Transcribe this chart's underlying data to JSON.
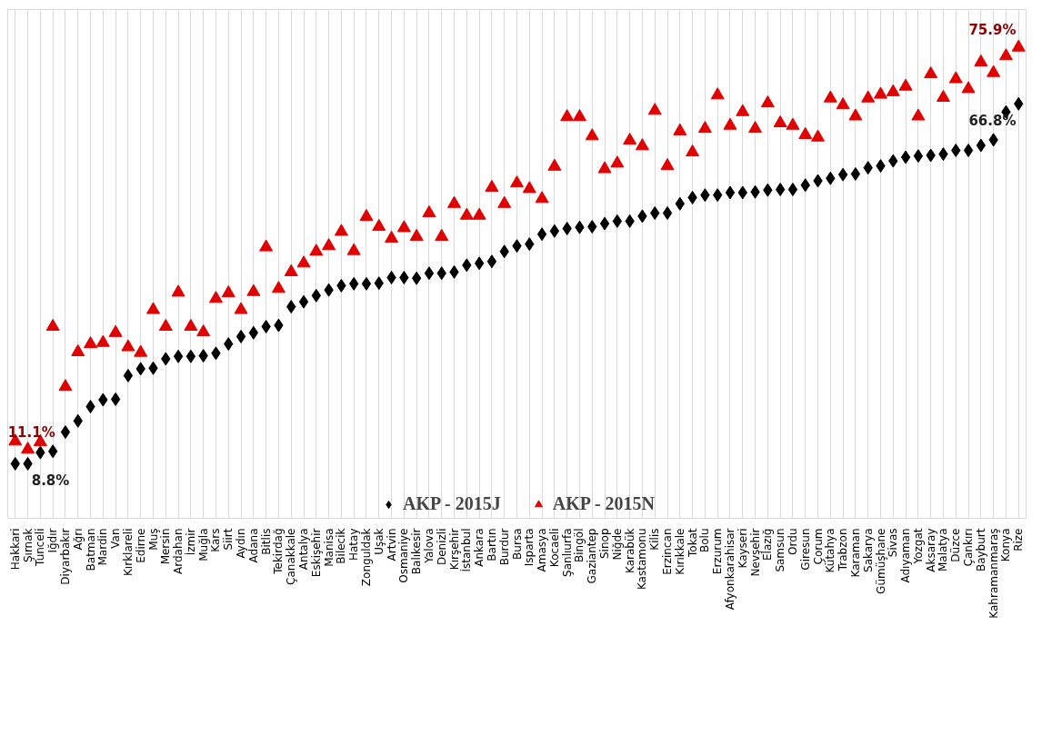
{
  "chart_data": {
    "type": "scatter",
    "categories": [
      "Hakkari",
      "Şırnak",
      "Tunceli",
      "Iğdır",
      "Diyarbakır",
      "Ağrı",
      "Batman",
      "Mardin",
      "Van",
      "Kırklareli",
      "Edirne",
      "Muş",
      "Mersin",
      "Ardahan",
      "İzmir",
      "Muğla",
      "Kars",
      "Siirt",
      "Aydın",
      "Adana",
      "Bitlis",
      "Tekirdağ",
      "Çanakkale",
      "Antalya",
      "Eskişehir",
      "Manisa",
      "Bilecik",
      "Hatay",
      "Zonguldak",
      "Uşak",
      "Artvin",
      "Osmaniye",
      "Balıkesir",
      "Yalova",
      "Denizli",
      "Kırşehir",
      "İstanbul",
      "Ankara",
      "Bartın",
      "Burdur",
      "Bursa",
      "Isparta",
      "Amasya",
      "Kocaeli",
      "Şanlıurfa",
      "Bingöl",
      "Gaziantep",
      "Sinop",
      "Niğde",
      "Karabük",
      "Kastamonu",
      "Kilis",
      "Erzincan",
      "Kırıkkale",
      "Tokat",
      "Bolu",
      "Erzurum",
      "Afyonkarahisar",
      "Kayseri",
      "Nevşehir",
      "Elazığ",
      "Samsun",
      "Ordu",
      "Giresun",
      "Çorum",
      "Kütahya",
      "Trabzon",
      "Karaman",
      "Sakarya",
      "Gümüşhane",
      "Sivas",
      "Adıyaman",
      "Yozgat",
      "Aksaray",
      "Malatya",
      "Düzce",
      "Çankırı",
      "Bayburt",
      "Kahramanmaraş",
      "Konya",
      "Rize"
    ],
    "ylim": [
      0,
      82
    ],
    "grid": "x",
    "legend": "bottom",
    "series": [
      {
        "name": "AKP - 2015J",
        "color": "#000000",
        "marker": "diamond",
        "values": [
          8.8,
          8.8,
          10.6,
          10.8,
          13.9,
          15.7,
          18.0,
          19.1,
          19.2,
          23.0,
          24.1,
          24.2,
          25.7,
          26.1,
          26.1,
          26.2,
          26.6,
          28.1,
          29.3,
          29.9,
          30.9,
          31.1,
          34.1,
          34.9,
          35.9,
          36.8,
          37.5,
          37.8,
          37.8,
          37.9,
          38.8,
          38.8,
          38.7,
          39.5,
          39.5,
          39.7,
          40.8,
          41.1,
          41.4,
          43.0,
          43.9,
          44.2,
          45.8,
          46.3,
          46.7,
          46.9,
          47.0,
          47.5,
          47.9,
          47.9,
          48.7,
          49.2,
          49.2,
          50.7,
          51.7,
          52.1,
          52.1,
          52.5,
          52.5,
          52.6,
          52.9,
          53.0,
          53.0,
          53.7,
          54.4,
          54.8,
          55.4,
          55.5,
          56.5,
          56.8,
          57.6,
          58.2,
          58.4,
          58.5,
          58.7,
          59.3,
          59.3,
          60.1,
          61.0,
          65.5,
          66.8
        ],
        "value_labels": [
          null,
          "8.8%",
          null,
          null,
          null,
          null,
          null,
          null,
          null,
          null,
          null,
          null,
          null,
          null,
          null,
          null,
          null,
          null,
          null,
          null,
          null,
          null,
          null,
          null,
          null,
          null,
          null,
          null,
          null,
          null,
          null,
          null,
          null,
          null,
          null,
          null,
          null,
          null,
          null,
          null,
          null,
          null,
          null,
          null,
          null,
          null,
          null,
          null,
          null,
          null,
          null,
          null,
          null,
          null,
          null,
          null,
          null,
          null,
          null,
          null,
          null,
          null,
          null,
          null,
          null,
          null,
          null,
          null,
          null,
          null,
          null,
          null,
          null,
          null,
          null,
          null,
          null,
          null,
          null,
          null,
          "66.8%"
        ]
      },
      {
        "name": "AKP - 2015N",
        "color": "#e00000",
        "marker": "triangle",
        "values": [
          12.4,
          11.1,
          12.3,
          30.9,
          21.2,
          26.8,
          28.1,
          28.3,
          29.9,
          27.6,
          26.7,
          33.6,
          30.9,
          36.4,
          30.9,
          30.0,
          35.4,
          36.3,
          33.6,
          36.5,
          43.7,
          37.0,
          39.7,
          41.1,
          43.0,
          43.9,
          46.2,
          43.1,
          48.6,
          47.0,
          45.1,
          46.8,
          45.4,
          49.2,
          45.4,
          50.7,
          48.8,
          48.8,
          53.3,
          50.7,
          54.0,
          53.1,
          51.5,
          56.7,
          64.7,
          64.7,
          61.6,
          56.3,
          57.2,
          60.9,
          60.0,
          65.7,
          56.8,
          62.4,
          59.0,
          62.8,
          68.2,
          63.3,
          65.5,
          62.8,
          66.9,
          63.7,
          63.3,
          61.8,
          61.4,
          67.7,
          66.6,
          64.8,
          67.7,
          68.3,
          68.7,
          69.6,
          64.8,
          71.6,
          67.8,
          70.8,
          69.2,
          73.5,
          71.8,
          74.5,
          75.9
        ],
        "value_labels": [
          null,
          "11.1%",
          null,
          null,
          null,
          null,
          null,
          null,
          null,
          null,
          null,
          null,
          null,
          null,
          null,
          null,
          null,
          null,
          null,
          null,
          null,
          null,
          null,
          null,
          null,
          null,
          null,
          null,
          null,
          null,
          null,
          null,
          null,
          null,
          null,
          null,
          null,
          null,
          null,
          null,
          null,
          null,
          null,
          null,
          null,
          null,
          null,
          null,
          null,
          null,
          null,
          null,
          null,
          null,
          null,
          null,
          null,
          null,
          null,
          null,
          null,
          null,
          null,
          null,
          null,
          null,
          null,
          null,
          null,
          null,
          null,
          null,
          null,
          null,
          null,
          null,
          null,
          null,
          null,
          null,
          "75.9%"
        ]
      }
    ]
  }
}
